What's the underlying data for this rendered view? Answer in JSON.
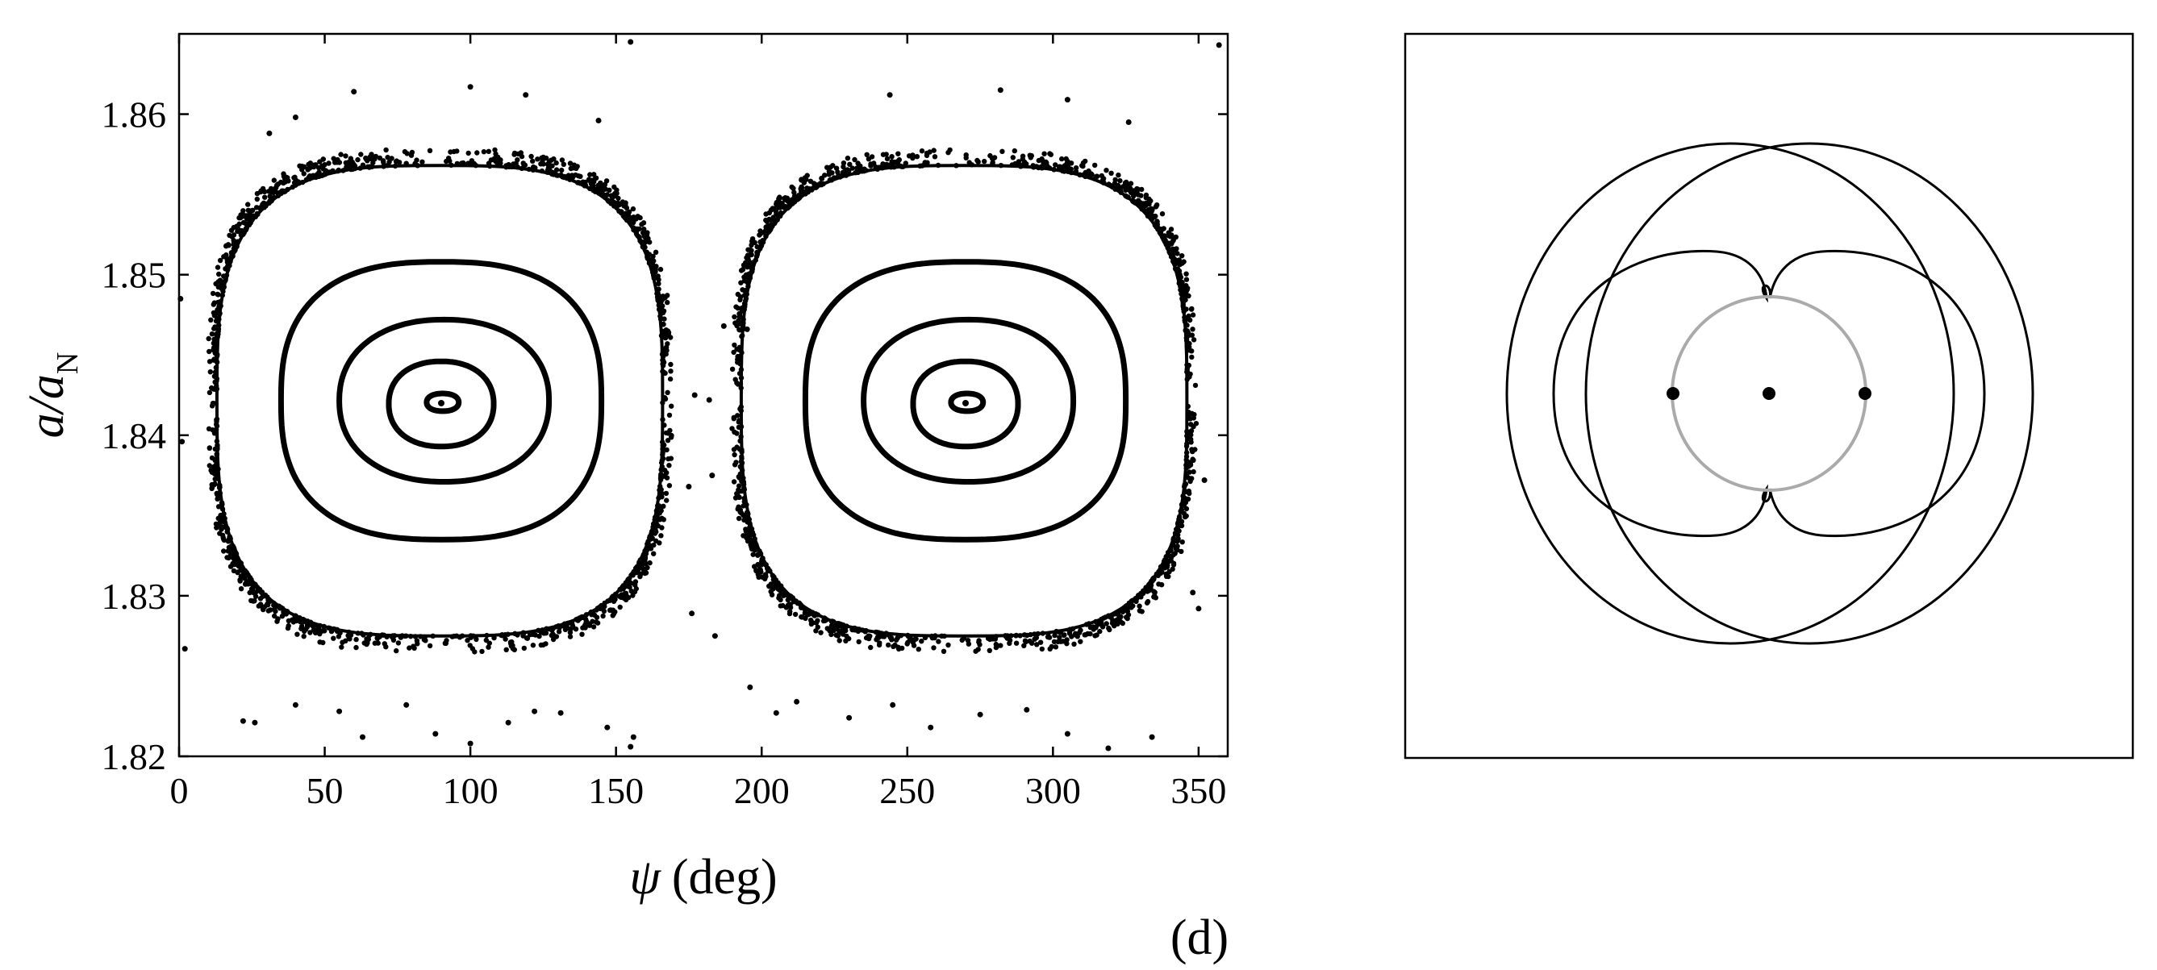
{
  "chart_data": [
    {
      "type": "scatter",
      "xlabel_symbol": "ψ",
      "xlabel_unit": "(deg)",
      "ylabel_main": "a/a",
      "ylabel_sub": "N",
      "xlim": [
        0,
        360
      ],
      "ylim": [
        1.82,
        1.865
      ],
      "xticks": [
        0,
        50,
        100,
        150,
        200,
        250,
        300,
        350
      ],
      "yticks": [
        1.82,
        1.83,
        1.84,
        1.85,
        1.86
      ],
      "ytick_labels": [
        "1.82",
        "1.83",
        "1.84",
        "1.85",
        "1.86"
      ],
      "grid": false,
      "panel_label": "(d)",
      "islands": [
        {
          "center": [
            90,
            1.842
          ],
          "separatrix": {
            "x_range": [
              13,
              166
            ],
            "y_range": [
              1.8275,
              1.8568
            ]
          },
          "invariant_curves": [
            {
              "x_range": [
                35,
                145
              ],
              "y_range": [
                1.8335,
                1.8508
              ]
            },
            {
              "x_range": [
                55,
                127
              ],
              "y_range": [
                1.8371,
                1.8472
              ]
            },
            {
              "x_range": [
                72,
                108
              ],
              "y_range": [
                1.8393,
                1.8446
              ]
            },
            {
              "x_range": [
                85,
                96
              ],
              "y_range": [
                1.8415,
                1.8426
              ]
            }
          ]
        },
        {
          "center": [
            270,
            1.842
          ],
          "separatrix": {
            "x_range": [
              193,
              346
            ],
            "y_range": [
              1.8275,
              1.8568
            ]
          },
          "invariant_curves": [
            {
              "x_range": [
                215,
                325
              ],
              "y_range": [
                1.8335,
                1.8508
              ]
            },
            {
              "x_range": [
                235,
                307
              ],
              "y_range": [
                1.8371,
                1.8472
              ]
            },
            {
              "x_range": [
                252,
                288
              ],
              "y_range": [
                1.8393,
                1.8446
              ]
            },
            {
              "x_range": [
                265,
                276
              ],
              "y_range": [
                1.8415,
                1.8426
              ]
            }
          ]
        }
      ],
      "scattered_points": [
        [
          2,
          1.8267
        ],
        [
          22,
          1.8222
        ],
        [
          26,
          1.8221
        ],
        [
          40,
          1.8232
        ],
        [
          55,
          1.8228
        ],
        [
          63,
          1.8212
        ],
        [
          78,
          1.8232
        ],
        [
          88,
          1.8214
        ],
        [
          100,
          1.8208
        ],
        [
          113,
          1.8221
        ],
        [
          122,
          1.8228
        ],
        [
          131,
          1.8227
        ],
        [
          147,
          1.8218
        ],
        [
          155,
          1.8206
        ],
        [
          156,
          1.8212
        ],
        [
          177,
          1.8425
        ],
        [
          182,
          1.8422
        ],
        [
          175,
          1.8368
        ],
        [
          183,
          1.8375
        ],
        [
          184,
          1.8275
        ],
        [
          176,
          1.8289
        ],
        [
          196,
          1.8243
        ],
        [
          205,
          1.8227
        ],
        [
          212,
          1.8234
        ],
        [
          230,
          1.8224
        ],
        [
          245,
          1.8232
        ],
        [
          258,
          1.8218
        ],
        [
          275,
          1.8226
        ],
        [
          291,
          1.8229
        ],
        [
          305,
          1.8214
        ],
        [
          319,
          1.8205
        ],
        [
          334,
          1.8212
        ],
        [
          350,
          1.8292
        ],
        [
          348,
          1.8302
        ],
        [
          357,
          1.8643
        ],
        [
          155,
          1.8645
        ],
        [
          0.5,
          1.8485
        ],
        [
          40,
          1.8598
        ],
        [
          60,
          1.8614
        ],
        [
          100,
          1.8617
        ],
        [
          119,
          1.8612
        ],
        [
          144,
          1.8596
        ],
        [
          244,
          1.8612
        ],
        [
          282,
          1.8615
        ],
        [
          305,
          1.8609
        ],
        [
          326,
          1.8595
        ],
        [
          31,
          1.8588
        ],
        [
          195,
          1.8466
        ],
        [
          1,
          1.8396
        ],
        [
          352,
          1.8372
        ],
        [
          187,
          1.8468
        ]
      ]
    },
    {
      "type": "orbit-diagram",
      "curves": [
        "outer-orbit-left",
        "outer-orbit-right",
        "inner-lobes",
        "reference-circle"
      ],
      "points": [
        "left-body",
        "center-body",
        "right-body"
      ],
      "colors": {
        "orbit": "#000000",
        "reference_circle": "#aaaaaa"
      }
    }
  ]
}
